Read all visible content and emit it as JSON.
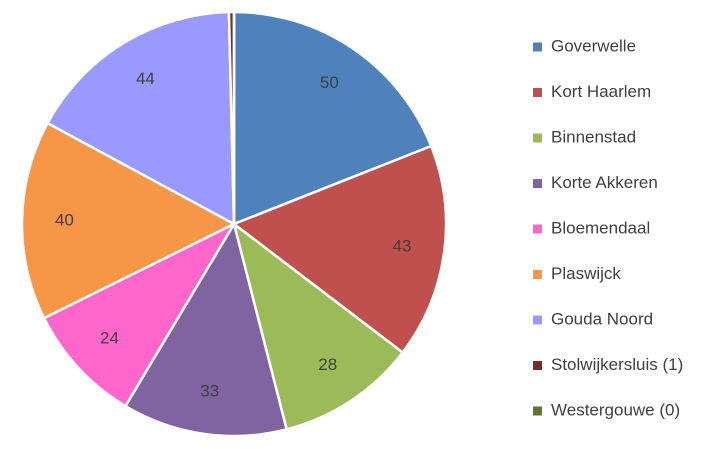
{
  "chart_data": {
    "type": "pie",
    "categories": [
      "Goverwelle",
      "Kort Haarlem",
      "Binnenstad",
      "Korte Akkeren",
      "Bloemendaal",
      "Plaswijck",
      "Gouda Noord",
      "Stolwijkersluis (1)",
      "Westergouwe (0)"
    ],
    "values": [
      50,
      43,
      28,
      33,
      24,
      40,
      44,
      1,
      0
    ],
    "colors": [
      "#4f81bd",
      "#c0504d",
      "#9bbb59",
      "#8064a2",
      "#ff66cc",
      "#f79646",
      "#9999ff",
      "#772c2a",
      "#5f7530"
    ],
    "legend": "right"
  }
}
